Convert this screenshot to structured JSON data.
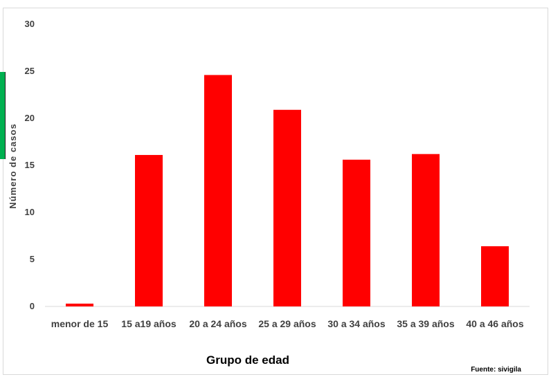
{
  "chart_data": {
    "type": "bar",
    "categories": [
      "menor de 15",
      "15 a19 años",
      "20 a 24 años",
      "25 a 29 años",
      "30 a 34 años",
      "35 a 39 años",
      "40 a 46 años"
    ],
    "values": [
      0.3,
      16.1,
      24.6,
      20.9,
      15.6,
      16.2,
      6.4
    ],
    "xlabel": "Grupo de edad",
    "ylabel": "Número de casos",
    "ylim": [
      0,
      30
    ],
    "yticks": [
      0,
      5,
      10,
      15,
      20,
      25,
      30
    ],
    "bar_color": "#ff0000",
    "grid": false,
    "source": "Fuente: sivigila"
  }
}
